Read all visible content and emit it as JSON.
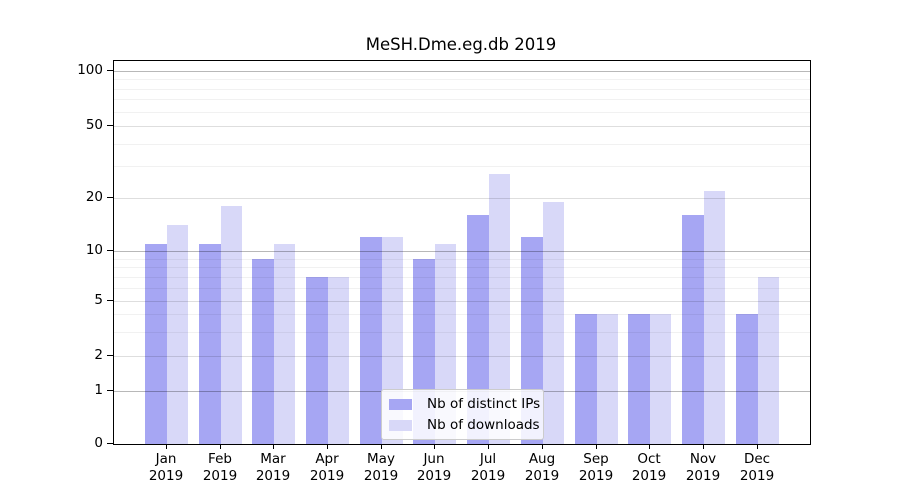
{
  "chart_data": {
    "type": "bar",
    "title": "MeSH.Dme.eg.db 2019",
    "categories": [
      "Jan",
      "Feb",
      "Mar",
      "Apr",
      "May",
      "Jun",
      "Jul",
      "Aug",
      "Sep",
      "Oct",
      "Nov",
      "Dec"
    ],
    "category_year": "2019",
    "series": [
      {
        "name": "Nb of distinct IPs",
        "color": "#a6a6f3",
        "values": [
          11,
          11,
          9,
          7,
          12,
          9,
          16,
          12,
          4,
          4,
          16,
          4
        ]
      },
      {
        "name": "Nb of downloads",
        "color": "#d8d8f8",
        "values": [
          14,
          18,
          11,
          7,
          12,
          11,
          27,
          19,
          4,
          4,
          22,
          7
        ]
      }
    ],
    "xlabel": "",
    "ylabel": "",
    "ylim": [
      0,
      100
    ],
    "yscale": "log-like (0,1,2,5,10,20,50,100)",
    "y_axis": {
      "labeled_ticks": [
        0,
        1,
        2,
        5,
        10,
        20,
        50,
        100
      ],
      "major_grid_values": [
        1,
        10,
        100
      ],
      "medium_grid_values": [
        2,
        5,
        20,
        50
      ],
      "minor_grid_values": [
        3,
        4,
        6,
        7,
        8,
        9,
        30,
        40,
        60,
        70,
        80,
        90
      ]
    },
    "grid": true,
    "legend_position": "inside-bottom-center"
  }
}
